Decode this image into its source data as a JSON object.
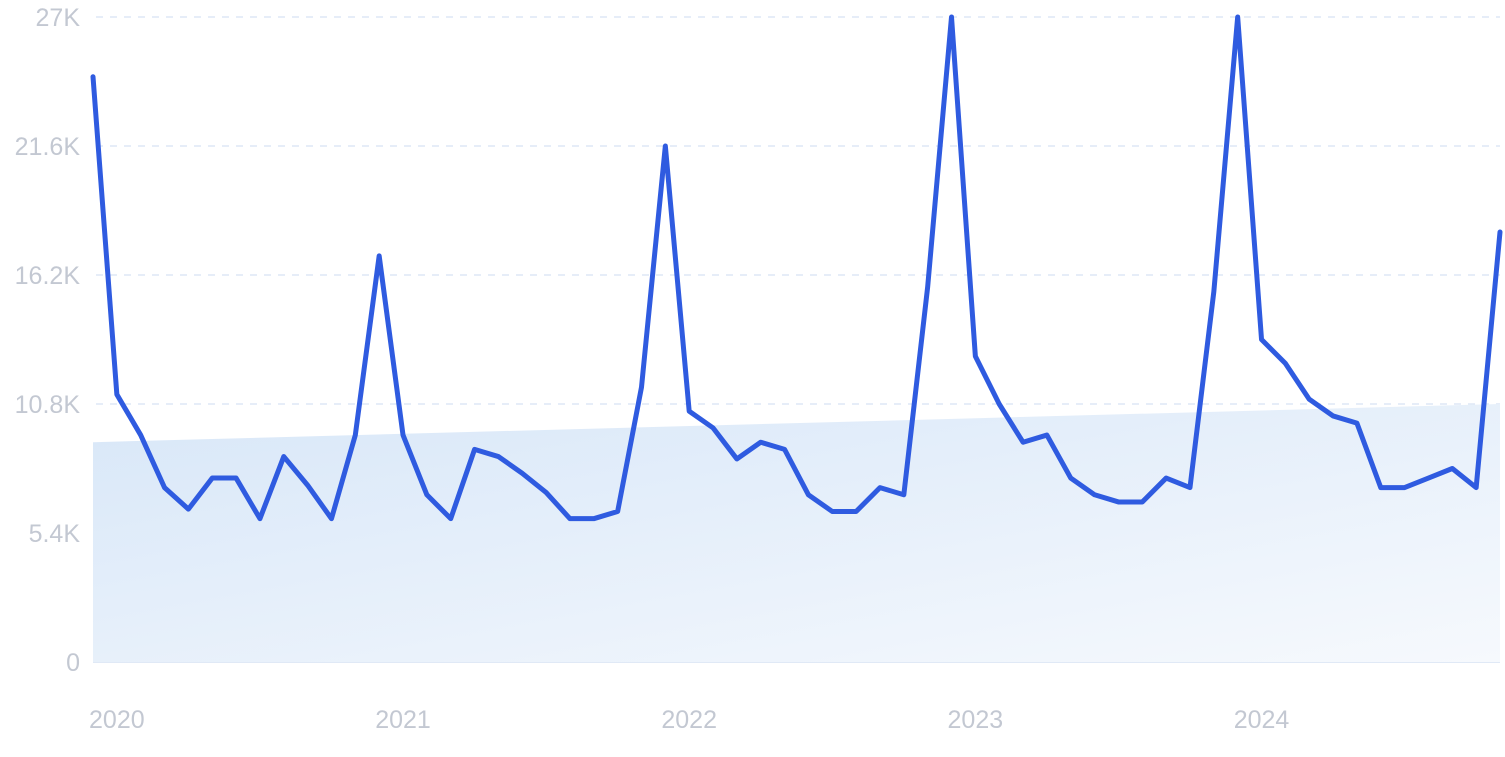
{
  "chart_data": {
    "type": "line",
    "title": "",
    "xlabel": "",
    "ylabel": "",
    "ylim": [
      0,
      27000
    ],
    "y_ticks": [
      0,
      5400,
      10800,
      16200,
      21600,
      27000
    ],
    "y_tick_labels": [
      "0",
      "5.4K",
      "10.8K",
      "16.2K",
      "21.6K",
      "27K"
    ],
    "x_tick_labels": [
      "2020",
      "2021",
      "2022",
      "2023",
      "2024"
    ],
    "x_tick_month_index": [
      1,
      13,
      25,
      37,
      49
    ],
    "x_start": "2019-12",
    "x_end": "2024-11",
    "grid": true,
    "legend": "none",
    "colors": {
      "line": "#2f5be0",
      "grid": "#d6e2f3",
      "tick_label": "#c3c8d2",
      "trend_fill": "#dceaf9"
    },
    "series": [
      {
        "values": [
          24500,
          11200,
          9500,
          7300,
          6400,
          7700,
          7700,
          6000,
          8600,
          7400,
          6000,
          9500,
          17000,
          9500,
          7000,
          6000,
          8900,
          8600,
          7900,
          7100,
          6000,
          6000,
          6300,
          11500,
          21600,
          10500,
          9800,
          8500,
          9200,
          8900,
          7000,
          6300,
          6300,
          7300,
          7000,
          15700,
          27000,
          12800,
          10800,
          9200,
          9500,
          7700,
          7000,
          6700,
          6700,
          7700,
          7300,
          15500,
          27000,
          13500,
          12500,
          11000,
          10300,
          10000,
          7300,
          7300,
          7700,
          8100,
          7300,
          18000
        ]
      }
    ],
    "trend": {
      "start_value": 9200,
      "end_value": 10800
    }
  }
}
